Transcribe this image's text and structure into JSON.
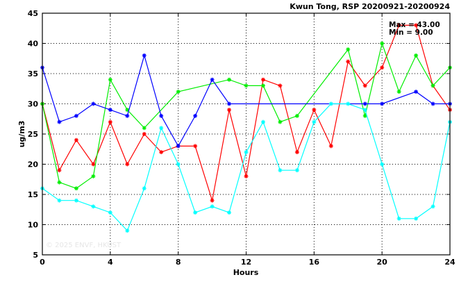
{
  "chart_data": {
    "type": "line",
    "title": "Kwun Tong, RSP 20200921-20200924",
    "xlabel": "Hours",
    "ylabel": "ug/m3",
    "xlim": [
      0,
      24
    ],
    "ylim": [
      5,
      45
    ],
    "xticks": [
      "0",
      "4",
      "8",
      "12",
      "16",
      "20",
      "24"
    ],
    "yticks": [
      "5",
      "10",
      "15",
      "20",
      "25",
      "30",
      "35",
      "40",
      "45"
    ],
    "grid": true,
    "stats": {
      "max": "Max = 43.00",
      "min": "Min = 9.00"
    },
    "watermark": "© 2025 ENVF, HKUST",
    "series": [
      {
        "color": "#ff0000",
        "x": [
          0,
          1,
          2,
          3,
          4,
          5,
          6,
          7,
          8,
          9,
          10,
          11,
          12,
          13,
          14,
          15,
          16,
          17,
          18,
          19,
          20,
          21,
          22,
          23,
          24
        ],
        "y": [
          30,
          19,
          24,
          20,
          27,
          20,
          25,
          22,
          23,
          23,
          14,
          29,
          18,
          34,
          33,
          22,
          29,
          23,
          37,
          33,
          36,
          43,
          43,
          33,
          29
        ]
      },
      {
        "color": "#00ee00",
        "x": [
          0,
          1,
          2,
          3,
          4,
          5,
          6,
          8,
          11,
          12,
          13,
          14,
          15,
          18,
          19,
          20,
          21,
          22,
          23,
          24
        ],
        "y": [
          30,
          17,
          16,
          18,
          34,
          29,
          26,
          32,
          34,
          33,
          33,
          27,
          28,
          39,
          28,
          40,
          32,
          38,
          33,
          36
        ]
      },
      {
        "color": "#0000ff",
        "x": [
          0,
          1,
          2,
          3,
          4,
          5,
          6,
          7,
          8,
          9,
          10,
          11,
          19,
          20,
          22,
          23,
          24
        ],
        "y": [
          36,
          27,
          28,
          30,
          29,
          28,
          38,
          28,
          23,
          28,
          34,
          30,
          30,
          30,
          32,
          30,
          30
        ]
      },
      {
        "color": "#00ffff",
        "x": [
          0,
          1,
          2,
          3,
          4,
          5,
          6,
          7,
          8,
          9,
          10,
          11,
          12,
          13,
          14,
          15,
          16,
          17,
          18,
          19,
          20,
          21,
          22,
          23,
          24
        ],
        "y": [
          16,
          14,
          14,
          13,
          12,
          9,
          16,
          26,
          20,
          12,
          13,
          12,
          22,
          27,
          19,
          19,
          27,
          30,
          30,
          29,
          20,
          11,
          11,
          13,
          27
        ]
      }
    ]
  }
}
